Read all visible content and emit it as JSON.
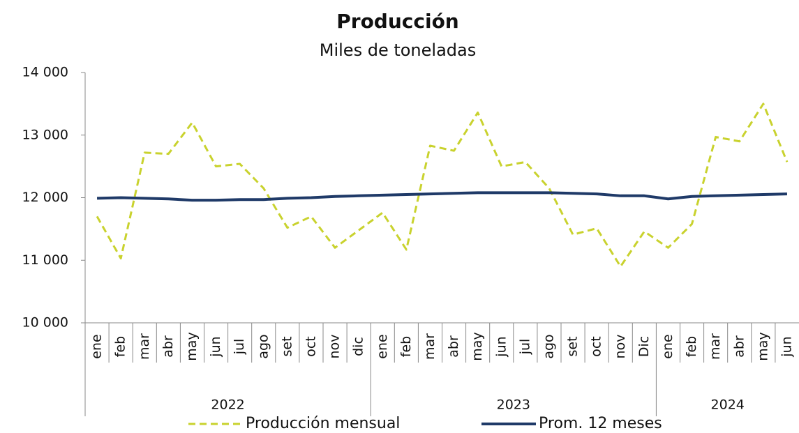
{
  "chart_data": {
    "type": "line",
    "title": "Producción",
    "subtitle": "Miles de toneladas",
    "years": [
      {
        "label": "2022",
        "months": [
          "ene",
          "feb",
          "mar",
          "abr",
          "may",
          "jun",
          "jul",
          "ago",
          "set",
          "oct",
          "nov",
          "dic"
        ]
      },
      {
        "label": "2023",
        "months": [
          "ene",
          "feb",
          "mar",
          "abr",
          "may",
          "jun",
          "jul",
          "ago",
          "set",
          "oct",
          "nov",
          "Dic"
        ]
      },
      {
        "label": "2024",
        "months": [
          "ene",
          "feb",
          "mar",
          "abr",
          "may",
          "jun"
        ]
      }
    ],
    "series": [
      {
        "name": "Producción mensual",
        "color": "#c9d22e",
        "dashed": true,
        "values": [
          11700,
          11030,
          12720,
          12700,
          13200,
          12500,
          12540,
          12150,
          11520,
          11700,
          11200,
          11480,
          11760,
          11170,
          12830,
          12750,
          13360,
          12500,
          12570,
          12150,
          11410,
          11510,
          10900,
          11460,
          11200,
          11580,
          12970,
          12900,
          13500,
          12570
        ]
      },
      {
        "name": "Prom. 12 meses",
        "color": "#1f3a68",
        "dashed": false,
        "values": [
          11990,
          12000,
          11990,
          11980,
          11960,
          11960,
          11970,
          11970,
          11990,
          12000,
          12020,
          12030,
          12040,
          12050,
          12060,
          12070,
          12080,
          12080,
          12080,
          12080,
          12070,
          12060,
          12030,
          12030,
          11980,
          12020,
          12030,
          12040,
          12050,
          12060
        ]
      }
    ],
    "ylim": [
      10000,
      14000
    ],
    "yticks": [
      {
        "value": 10000,
        "label": "10 000"
      },
      {
        "value": 11000,
        "label": "11 000"
      },
      {
        "value": 12000,
        "label": "12 000"
      },
      {
        "value": 13000,
        "label": "13 000"
      },
      {
        "value": 14000,
        "label": "14 000"
      }
    ],
    "grid": false,
    "legend": "bottom"
  }
}
